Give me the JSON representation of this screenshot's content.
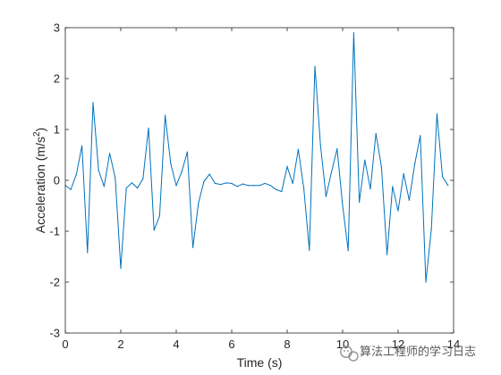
{
  "chart_data": {
    "type": "line",
    "title": "",
    "xlabel": "Time (s)",
    "ylabel_main": "Acceleration (m/s",
    "ylabel_sup": "2",
    "ylabel_tail": ")",
    "xlim": [
      0,
      14
    ],
    "ylim": [
      -3,
      3
    ],
    "xticks": [
      0,
      2,
      4,
      6,
      8,
      10,
      12,
      14
    ],
    "yticks": [
      -3,
      -2,
      -1,
      0,
      1,
      2,
      3
    ],
    "grid": false,
    "legend": "none",
    "line_color": "#0072BD",
    "x": [
      0.0,
      0.2,
      0.4,
      0.6,
      0.8,
      1.0,
      1.2,
      1.4,
      1.6,
      1.8,
      2.0,
      2.2,
      2.4,
      2.6,
      2.8,
      3.0,
      3.2,
      3.4,
      3.6,
      3.8,
      4.0,
      4.2,
      4.4,
      4.6,
      4.8,
      5.0,
      5.2,
      5.4,
      5.6,
      5.8,
      6.0,
      6.2,
      6.4,
      6.6,
      6.8,
      7.0,
      7.2,
      7.4,
      7.6,
      7.8,
      8.0,
      8.2,
      8.4,
      8.6,
      8.8,
      9.0,
      9.2,
      9.4,
      9.6,
      9.8,
      10.0,
      10.2,
      10.4,
      10.6,
      10.8,
      11.0,
      11.2,
      11.4,
      11.6,
      11.8,
      12.0,
      12.2,
      12.4,
      12.6,
      12.8,
      13.0,
      13.2,
      13.4,
      13.6,
      13.8
    ],
    "y": [
      -0.1,
      -0.18,
      0.12,
      0.68,
      -1.42,
      1.53,
      0.2,
      -0.12,
      0.53,
      0.05,
      -1.73,
      -0.15,
      -0.05,
      -0.15,
      0.03,
      1.03,
      -0.98,
      -0.7,
      1.28,
      0.33,
      -0.1,
      0.17,
      0.56,
      -1.32,
      -0.45,
      -0.02,
      0.12,
      -0.06,
      -0.08,
      -0.05,
      -0.06,
      -0.12,
      -0.07,
      -0.1,
      -0.1,
      -0.1,
      -0.06,
      -0.1,
      -0.18,
      -0.22,
      0.27,
      -0.06,
      0.61,
      -0.16,
      -1.37,
      2.24,
      0.7,
      -0.32,
      0.17,
      0.62,
      -0.5,
      -1.38,
      2.9,
      -0.43,
      0.4,
      -0.17,
      0.92,
      0.26,
      -1.46,
      -0.12,
      -0.6,
      0.13,
      -0.39,
      0.32,
      0.88,
      -2.0,
      -0.95,
      1.31,
      0.07,
      -0.1
    ]
  },
  "watermark": {
    "text": "算法工程师的学习日志",
    "icon": "wechat-icon"
  }
}
